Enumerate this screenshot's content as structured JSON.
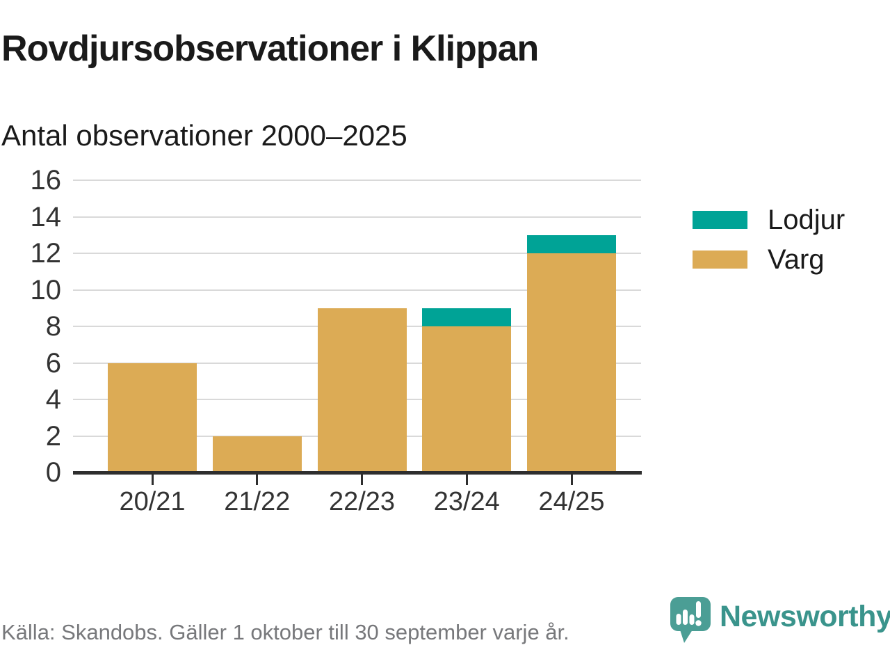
{
  "chart_data": {
    "type": "bar",
    "stacked": true,
    "title": "Rovdjursobservationer i Klippan",
    "subtitle": "Antal observationer 2000–2025",
    "categories": [
      "20/21",
      "21/22",
      "22/23",
      "23/24",
      "24/25"
    ],
    "series": [
      {
        "name": "Lodjur",
        "color": "#00a396",
        "values": [
          0,
          0,
          0,
          1,
          1
        ]
      },
      {
        "name": "Varg",
        "color": "#dcab55",
        "values": [
          6,
          2,
          9,
          8,
          12
        ]
      }
    ],
    "totals": [
      6,
      2,
      9,
      9,
      13
    ],
    "xlabel": "",
    "ylabel": "",
    "ylim": [
      0,
      16
    ],
    "yticks": [
      0,
      2,
      4,
      6,
      8,
      10,
      12,
      14,
      16
    ],
    "grid": true,
    "legend_position": "right"
  },
  "footer": {
    "source": "Källa: Skandobs. Gäller 1 oktober till 30 september varje år."
  },
  "branding": {
    "wordmark": "Newsworthy",
    "icon": "newsworthy-speech-bubble-bar-chart-icon",
    "icon_color": "#4b9e95",
    "text_color": "#3a948c"
  },
  "colors": {
    "lodjur": "#00a396",
    "varg": "#dcab55",
    "grid": "#d9d9d9",
    "axis_line": "#2e2e2e",
    "tick_label": "#333333",
    "text": "#1a1a1a",
    "source_text": "#77787b",
    "background": "#ffffff"
  }
}
